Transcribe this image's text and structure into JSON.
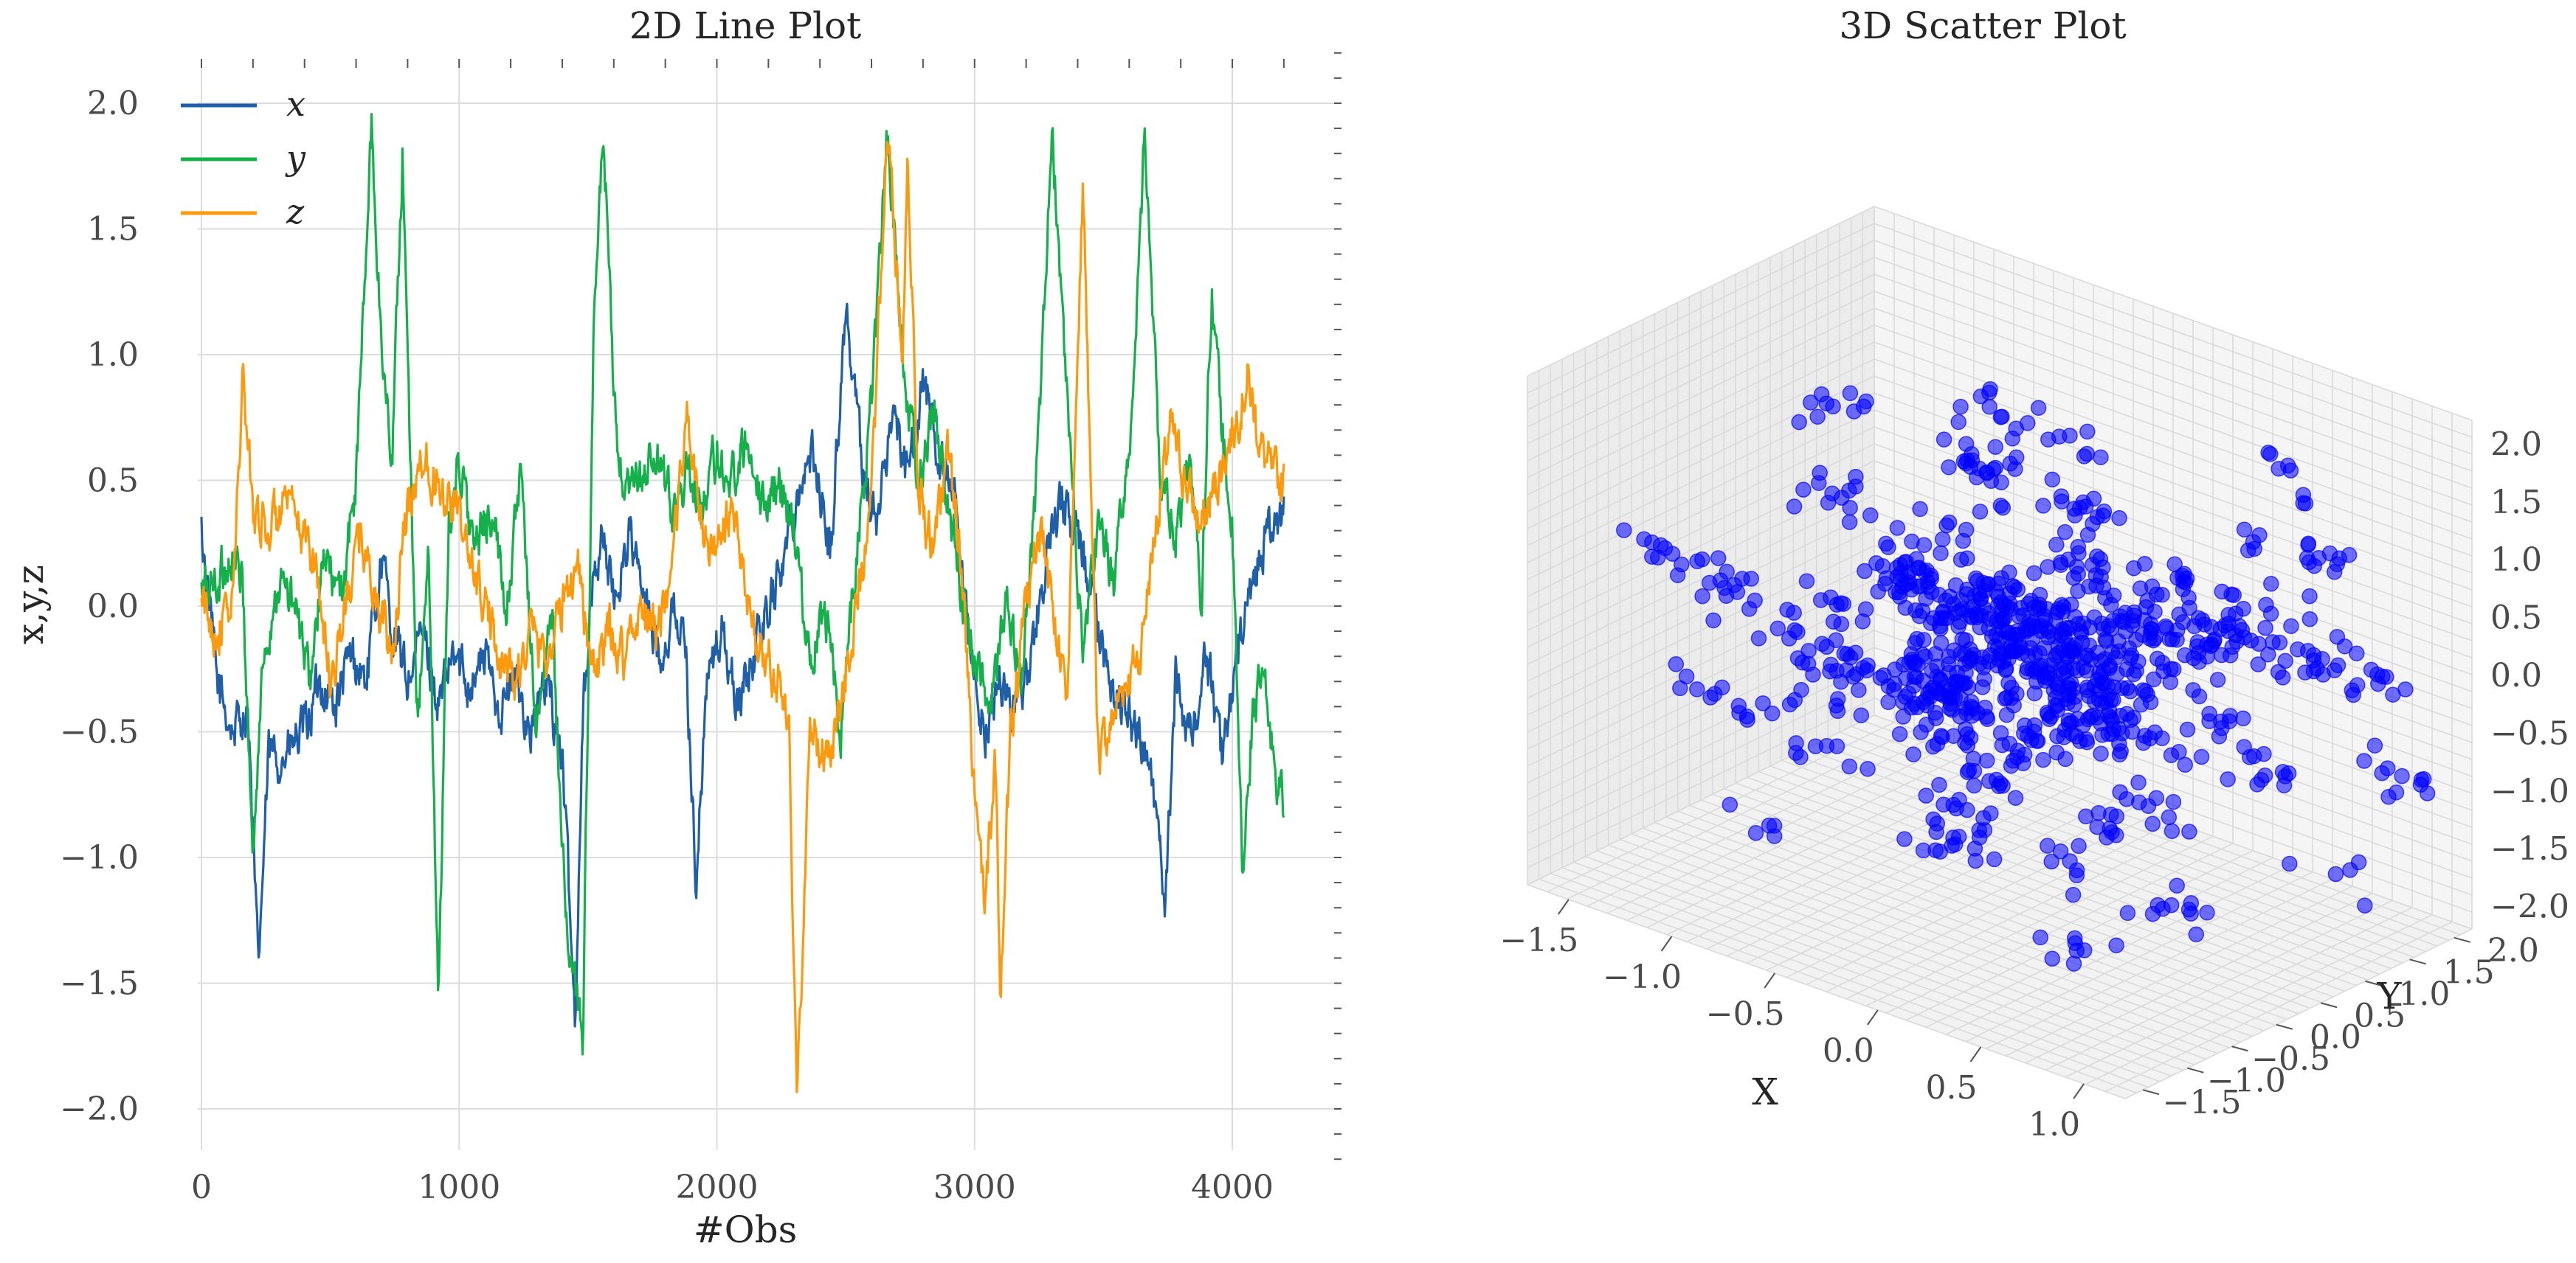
{
  "chart_data": [
    {
      "type": "line",
      "title": "2D Line Plot",
      "xlabel": "#Obs",
      "ylabel": "x,y,z",
      "xlim": [
        -100,
        4400
      ],
      "ylim": [
        -2.2,
        2.2
      ],
      "xticks": [
        0,
        1000,
        2000,
        3000,
        4000
      ],
      "xtick_labels": [
        "0",
        "1000",
        "2000",
        "3000",
        "4000"
      ],
      "yticks": [
        2.0,
        1.5,
        1.0,
        0.5,
        0.0,
        -0.5,
        -1.0,
        -1.5,
        -2.0
      ],
      "ytick_labels": [
        "2.0",
        "1.5",
        "1.0",
        "0.5",
        "0.0",
        "−0.5",
        "−1.0",
        "−1.5",
        "−2.0"
      ],
      "grid": true,
      "legend_position": "top-left",
      "n_points": 4200,
      "series": [
        {
          "name": "x",
          "color": "#1f5fa8",
          "x": [
            0,
            60,
            120,
            180,
            220,
            260,
            320,
            400,
            460,
            520,
            580,
            640,
            700,
            740,
            800,
            860,
            920,
            980,
            1040,
            1100,
            1160,
            1220,
            1280,
            1340,
            1400,
            1450,
            1480,
            1520,
            1560,
            1600,
            1660,
            1720,
            1780,
            1840,
            1880,
            1920,
            1960,
            2020,
            2080,
            2140,
            2200,
            2260,
            2320,
            2380,
            2440,
            2500,
            2560,
            2620,
            2680,
            2740,
            2800,
            2860,
            2920,
            2980,
            3000,
            3040,
            3100,
            3160,
            3220,
            3280,
            3340,
            3400,
            3460,
            3520,
            3580,
            3640,
            3700,
            3740,
            3780,
            3840,
            3900,
            3960,
            4020,
            4080,
            4140,
            4200
          ],
          "values": [
            0.3,
            -0.3,
            -0.5,
            -0.4,
            -1.45,
            -0.6,
            -0.6,
            -0.5,
            -0.3,
            -0.4,
            -0.2,
            -0.3,
            0.2,
            -0.1,
            -0.3,
            -0.1,
            -0.4,
            -0.2,
            -0.3,
            -0.2,
            -0.4,
            -0.3,
            -0.5,
            -0.3,
            -0.6,
            -1.65,
            -0.4,
            0.1,
            0.3,
            0.0,
            0.3,
            0.0,
            -0.2,
            0.0,
            -0.2,
            -1.1,
            -0.3,
            -0.1,
            -0.4,
            -0.2,
            0.0,
            0.2,
            0.5,
            0.6,
            0.2,
            1.2,
            0.6,
            0.3,
            0.8,
            0.5,
            0.9,
            0.6,
            0.4,
            -0.2,
            -0.3,
            -0.5,
            -0.3,
            -0.4,
            -0.2,
            0.2,
            0.4,
            0.3,
            0.0,
            -0.3,
            -0.4,
            -0.5,
            -0.8,
            -1.2,
            -0.3,
            -0.5,
            -0.2,
            -0.6,
            -0.2,
            0.1,
            0.3,
            0.35
          ]
        },
        {
          "name": "y",
          "color": "#15b04c",
          "x": [
            0,
            60,
            120,
            160,
            200,
            240,
            300,
            360,
            420,
            480,
            540,
            600,
            660,
            700,
            740,
            780,
            840,
            880,
            920,
            960,
            1000,
            1060,
            1120,
            1180,
            1240,
            1300,
            1360,
            1400,
            1440,
            1480,
            1520,
            1560,
            1600,
            1640,
            1700,
            1760,
            1820,
            1880,
            1940,
            2000,
            2060,
            2120,
            2180,
            2240,
            2300,
            2360,
            2420,
            2480,
            2540,
            2600,
            2660,
            2720,
            2780,
            2840,
            2900,
            2960,
            3000,
            3060,
            3120,
            3180,
            3240,
            3300,
            3360,
            3420,
            3480,
            3540,
            3600,
            3660,
            3720,
            3780,
            3840,
            3880,
            3920,
            3960,
            4000,
            4040,
            4080,
            4120,
            4160,
            4200
          ],
          "values": [
            0.05,
            0.1,
            0.2,
            0.1,
            -1.0,
            -0.2,
            0.1,
            0.0,
            -0.3,
            0.2,
            0.0,
            0.5,
            1.9,
            1.0,
            0.6,
            1.8,
            -0.5,
            0.2,
            -1.55,
            0.3,
            0.6,
            0.2,
            0.4,
            0.0,
            0.5,
            -0.5,
            0.0,
            -1.0,
            -1.5,
            -1.7,
            1.0,
            1.9,
            0.8,
            0.4,
            0.5,
            0.6,
            0.4,
            0.5,
            0.4,
            0.6,
            0.5,
            0.7,
            0.4,
            0.5,
            0.3,
            -0.2,
            0.0,
            -0.5,
            0.2,
            0.8,
            1.9,
            1.0,
            0.5,
            0.8,
            0.4,
            0.0,
            -0.2,
            -0.4,
            0.0,
            -0.3,
            0.5,
            1.9,
            0.8,
            -0.2,
            0.3,
            0.1,
            0.6,
            1.9,
            0.5,
            0.3,
            0.6,
            0.0,
            1.3,
            0.7,
            0.3,
            -1.1,
            -0.4,
            -0.3,
            -0.6,
            -0.8
          ]
        },
        {
          "name": "z",
          "color": "#fb9a0e",
          "x": [
            0,
            60,
            120,
            160,
            200,
            260,
            320,
            380,
            440,
            500,
            560,
            620,
            680,
            740,
            800,
            860,
            920,
            980,
            1040,
            1100,
            1160,
            1220,
            1280,
            1340,
            1400,
            1460,
            1520,
            1580,
            1640,
            1700,
            1760,
            1820,
            1880,
            1940,
            2000,
            2060,
            2120,
            2180,
            2240,
            2280,
            2310,
            2360,
            2420,
            2480,
            2540,
            2600,
            2660,
            2720,
            2740,
            2780,
            2840,
            2900,
            2960,
            3000,
            3040,
            3080,
            3100,
            3140,
            3200,
            3260,
            3300,
            3360,
            3420,
            3480,
            3520,
            3580,
            3640,
            3700,
            3760,
            3820,
            3880,
            3940,
            4000,
            4060,
            4120,
            4160,
            4200
          ],
          "values": [
            0.0,
            -0.1,
            0.0,
            0.9,
            0.4,
            0.3,
            0.4,
            0.3,
            0.2,
            -0.3,
            0.0,
            0.3,
            0.0,
            -0.2,
            0.4,
            0.6,
            0.5,
            0.4,
            0.2,
            0.0,
            -0.2,
            -0.3,
            -0.1,
            -0.2,
            0.0,
            0.2,
            -0.3,
            -0.1,
            -0.2,
            0.0,
            -0.1,
            0.0,
            0.8,
            0.3,
            0.2,
            0.4,
            0.0,
            -0.2,
            -0.3,
            -0.5,
            -2.0,
            -0.5,
            -0.6,
            -0.4,
            0.0,
            0.4,
            1.9,
            1.0,
            1.8,
            0.5,
            0.2,
            0.6,
            0.1,
            -0.8,
            -1.2,
            -0.6,
            -1.5,
            -0.5,
            0.0,
            0.3,
            0.0,
            -0.4,
            1.7,
            -0.6,
            -0.5,
            -0.3,
            -0.2,
            0.3,
            0.7,
            0.5,
            0.3,
            0.5,
            0.7,
            0.9,
            0.6,
            0.5,
            0.5
          ]
        }
      ]
    },
    {
      "type": "scatter",
      "title": "3D Scatter Plot",
      "xlabel": "X",
      "ylabel": "Y",
      "zlabel": "",
      "xlim": [
        -1.7,
        1.2
      ],
      "ylim": [
        -1.7,
        2.2
      ],
      "zlim": [
        -2.2,
        2.2
      ],
      "xticks": [
        -1.5,
        -1.0,
        -0.5,
        0.0,
        0.5,
        1.0
      ],
      "xtick_labels": [
        "−1.5",
        "−1.0",
        "−0.5",
        "0.0",
        "0.5",
        "1.0"
      ],
      "yticks": [
        -1.5,
        -1.0,
        -0.5,
        0.0,
        0.5,
        1.0,
        1.5,
        2.0
      ],
      "ytick_labels": [
        "−1.5",
        "−1.0",
        "−0.5",
        "0.0",
        "0.5",
        "1.0",
        "1.5",
        "2.0"
      ],
      "zticks": [
        2.0,
        1.5,
        1.0,
        0.5,
        0.0,
        -0.5,
        -1.0,
        -1.5,
        -2.0
      ],
      "ztick_labels": [
        "2.0",
        "1.5",
        "1.0",
        "0.5",
        "0.0",
        "−0.5",
        "−1.0",
        "−1.5",
        "−2.0"
      ],
      "marker_color": "#0000ff",
      "n_points": 4200,
      "points": [
        [
          -0.45,
          0.5,
          0.1
        ],
        [
          -0.3,
          0.4,
          0.2
        ],
        [
          -0.2,
          0.2,
          -0.1
        ],
        [
          -0.1,
          0.3,
          0.3
        ],
        [
          0.0,
          0.5,
          0.1
        ],
        [
          0.1,
          0.1,
          0.0
        ],
        [
          0.2,
          0.4,
          -0.2
        ],
        [
          -0.5,
          0.0,
          0.4
        ],
        [
          -0.6,
          0.6,
          0.0
        ],
        [
          -0.35,
          0.8,
          -0.3
        ],
        [
          -0.25,
          -0.1,
          0.5
        ],
        [
          0.15,
          0.6,
          0.4
        ],
        [
          0.3,
          0.2,
          0.6
        ],
        [
          -0.05,
          -0.2,
          -0.4
        ],
        [
          -0.4,
          0.3,
          -0.6
        ],
        [
          0.25,
          -0.3,
          0.2
        ],
        [
          -0.15,
          0.9,
          0.5
        ],
        [
          0.4,
          0.7,
          0.1
        ],
        [
          -0.7,
          0.2,
          0.3
        ],
        [
          0.05,
          0.0,
          0.7
        ],
        [
          -0.55,
          1.1,
          -0.5
        ],
        [
          -0.2,
          1.3,
          0.2
        ],
        [
          0.35,
          -0.5,
          -0.2
        ],
        [
          -0.3,
          -0.6,
          0.0
        ],
        [
          0.5,
          1.0,
          -0.4
        ],
        [
          -0.8,
          0.5,
          -0.8
        ],
        [
          0.1,
          1.5,
          0.3
        ],
        [
          -0.45,
          -0.4,
          0.8
        ],
        [
          0.2,
          0.9,
          -0.7
        ],
        [
          -0.65,
          0.8,
          0.6
        ],
        [
          0.45,
          0.3,
          -0.9
        ],
        [
          -0.1,
          -0.8,
          -0.3
        ],
        [
          0.3,
          1.7,
          0.0
        ],
        [
          -0.9,
          0.0,
          0.1
        ],
        [
          0.6,
          0.5,
          0.5
        ],
        [
          -0.35,
          1.6,
          -0.9
        ],
        [
          0.0,
          -1.0,
          0.4
        ],
        [
          -1.0,
          1.0,
          0.2
        ],
        [
          0.7,
          1.4,
          0.2
        ],
        [
          -0.5,
          -1.0,
          -0.5
        ],
        [
          0.55,
          -0.8,
          0.3
        ],
        [
          -0.75,
          -0.5,
          -0.2
        ],
        [
          0.15,
          -1.2,
          -0.8
        ],
        [
          -1.1,
          0.4,
          -1.0
        ],
        [
          0.8,
          0.8,
          -0.6
        ],
        [
          -0.6,
          1.9,
          0.4
        ],
        [
          0.65,
          1.8,
          -0.2
        ],
        [
          -0.85,
          1.5,
          0.7
        ],
        [
          0.4,
          -1.4,
          0.1
        ],
        [
          -0.2,
          2.0,
          -0.4
        ],
        [
          -1.3,
          0.8,
          0.5
        ],
        [
          0.9,
          0.2,
          0.8
        ],
        [
          -1.2,
          -0.8,
          -0.6
        ],
        [
          0.75,
          -1.2,
          -0.7
        ],
        [
          -0.4,
          -1.4,
          0.6
        ],
        [
          1.0,
          1.6,
          0.1
        ],
        [
          -1.4,
          0.1,
          -0.3
        ],
        [
          0.95,
          -0.6,
          -1.1
        ],
        [
          -0.95,
          1.9,
          -0.7
        ],
        [
          0.5,
          2.1,
          0.6
        ],
        [
          -1.5,
          1.2,
          1.0
        ],
        [
          1.1,
          0.9,
          -1.3
        ],
        [
          -1.6,
          -0.3,
          0.2
        ],
        [
          1.05,
          -1.5,
          0.9
        ],
        [
          -0.3,
          0.0,
          -1.3
        ],
        [
          0.2,
          0.3,
          1.1
        ],
        [
          -0.7,
          -1.3,
          -1.2
        ],
        [
          0.6,
          1.2,
          1.2
        ],
        [
          -1.0,
          2.0,
          0.9
        ],
        [
          0.85,
          2.0,
          -1.0
        ],
        [
          -0.5,
          0.6,
          1.3
        ],
        [
          0.1,
          0.7,
          -1.5
        ],
        [
          -1.55,
          0.6,
          -1.4
        ],
        [
          1.15,
          0.0,
          1.4
        ],
        [
          -0.15,
          1.0,
          1.5
        ],
        [
          0.35,
          -0.9,
          1.2
        ],
        [
          -0.85,
          -1.5,
          0.9
        ],
        [
          0.7,
          -1.0,
          -1.5
        ],
        [
          -1.25,
          1.7,
          -1.2
        ],
        [
          0.45,
          1.9,
          1.4
        ],
        [
          -0.05,
          0.2,
          0.0
        ],
        [
          -0.25,
          0.5,
          -0.1
        ],
        [
          0.05,
          0.4,
          0.2
        ],
        [
          -0.35,
          0.1,
          0.1
        ],
        [
          0.15,
          0.2,
          -0.3
        ],
        [
          -0.45,
          0.7,
          0.3
        ],
        [
          0.25,
          0.6,
          0.0
        ],
        [
          -0.15,
          -0.3,
          -0.2
        ],
        [
          0.35,
          0.0,
          0.4
        ],
        [
          -0.6,
          0.3,
          -0.4
        ]
      ]
    }
  ]
}
